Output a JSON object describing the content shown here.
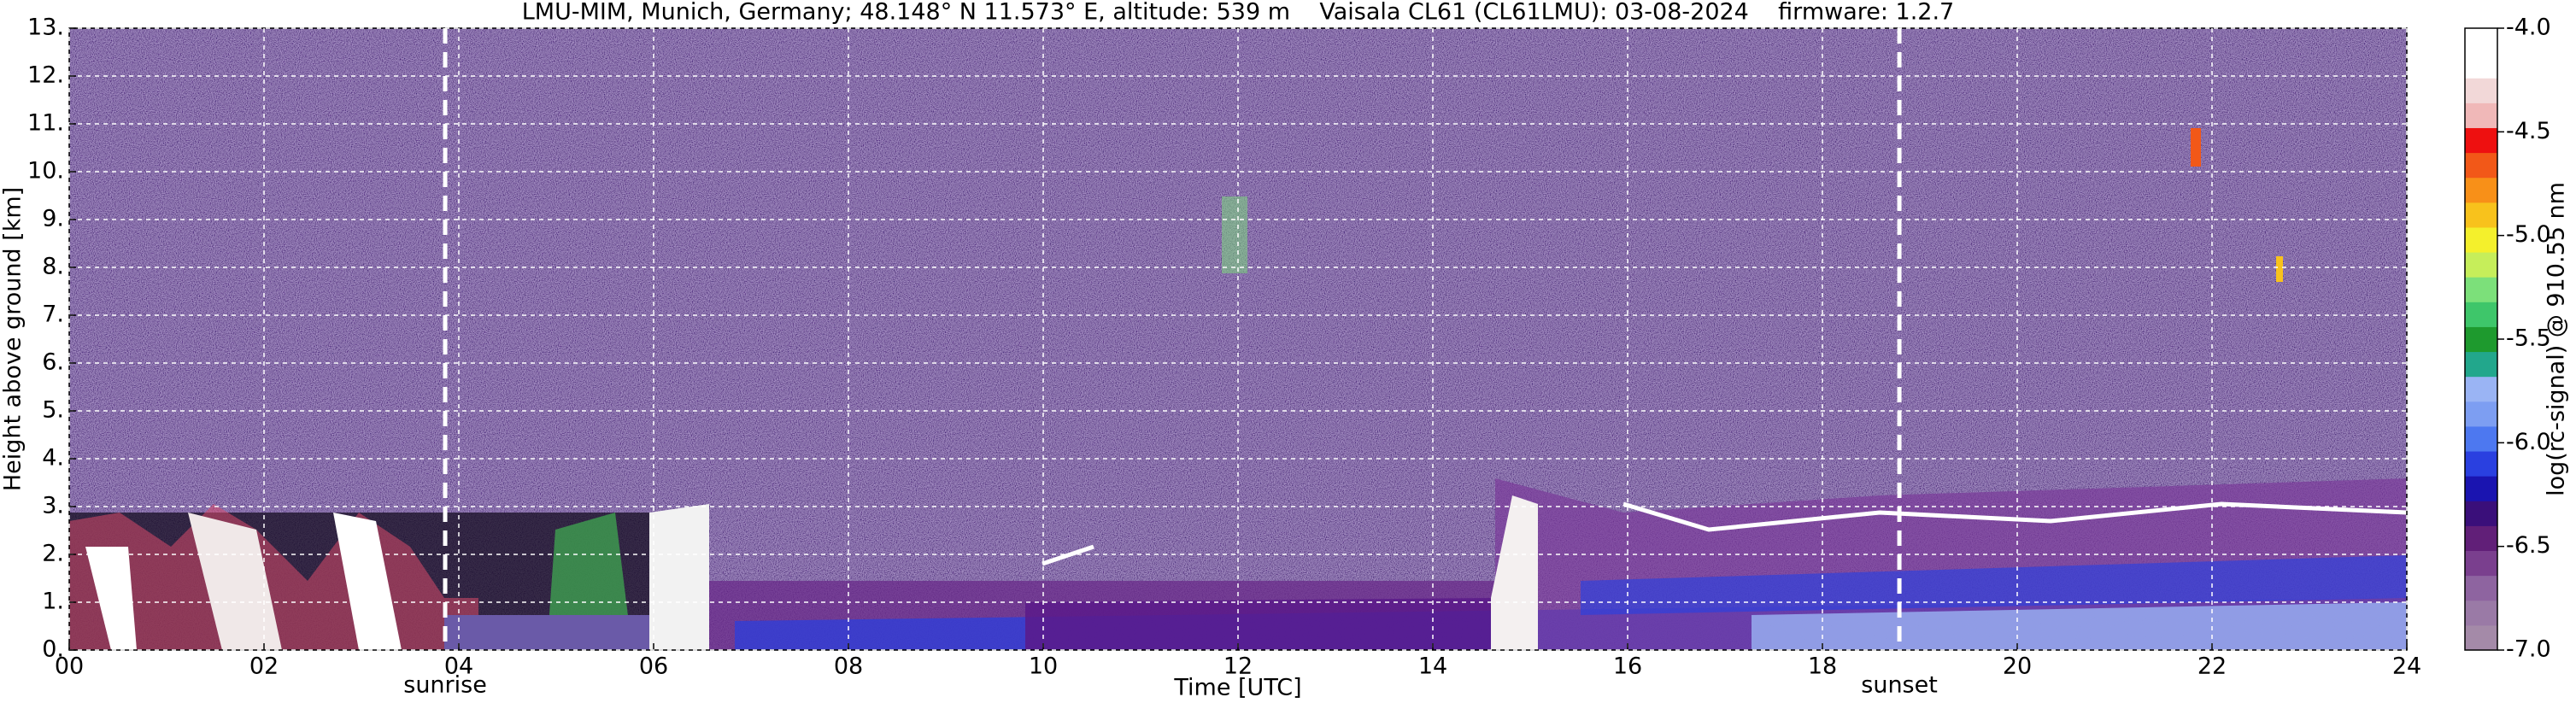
{
  "chart_data": {
    "type": "heatmap",
    "title": "LMU-MIM, Munich, Germany; 48.148° N 11.573° E, altitude: 539 m    Vaisala CL61 (CL61LMU): 03-08-2024    firmware: 1.2.7",
    "x_label": "Time [UTC]",
    "y_label": "Height above ground [km]",
    "colorbar_label": "log(rc-signal) @ 910.55 nm",
    "xlim": [
      0,
      24
    ],
    "xticks": [
      {
        "value": 0,
        "label": "00"
      },
      {
        "value": 2,
        "label": "02"
      },
      {
        "value": 4,
        "label": "04"
      },
      {
        "value": 6,
        "label": "06"
      },
      {
        "value": 8,
        "label": "08"
      },
      {
        "value": 10,
        "label": "10"
      },
      {
        "value": 12,
        "label": "12"
      },
      {
        "value": 14,
        "label": "14"
      },
      {
        "value": 16,
        "label": "16"
      },
      {
        "value": 18,
        "label": "18"
      },
      {
        "value": 20,
        "label": "20"
      },
      {
        "value": 22,
        "label": "22"
      },
      {
        "value": 24,
        "label": "24"
      }
    ],
    "ylim": [
      0,
      13
    ],
    "yticks": [
      {
        "value": 0,
        "label": "0."
      },
      {
        "value": 1,
        "label": "1."
      },
      {
        "value": 2,
        "label": "2."
      },
      {
        "value": 3,
        "label": "3."
      },
      {
        "value": 4,
        "label": "4."
      },
      {
        "value": 5,
        "label": "5."
      },
      {
        "value": 6,
        "label": "6."
      },
      {
        "value": 7,
        "label": "7."
      },
      {
        "value": 8,
        "label": "8."
      },
      {
        "value": 9,
        "label": "9."
      },
      {
        "value": 10,
        "label": "10."
      },
      {
        "value": 11,
        "label": "11."
      },
      {
        "value": 12,
        "label": "12."
      },
      {
        "value": 13,
        "label": "13."
      }
    ],
    "clim": [
      -7,
      -4
    ],
    "cticks": [
      {
        "value": -4,
        "label": "-4.0"
      },
      -4.5,
      {
        "value": -5,
        "label": "-5.0"
      },
      -5.5,
      {
        "value": -6,
        "label": "-6.0"
      },
      -6.5,
      {
        "value": -7,
        "label": "-7.0"
      }
    ],
    "colormap": [
      "#a48aa8",
      "#9a7aa6",
      "#8e64a0",
      "#7a3f8e",
      "#611f78",
      "#3a0f7a",
      "#1a14b0",
      "#2a40e0",
      "#4d78f0",
      "#7d9ef2",
      "#9ab4f4",
      "#22a78c",
      "#1e9a2e",
      "#3ec66a",
      "#7ce07a",
      "#c6ee5a",
      "#f4f02c",
      "#f8c21c",
      "#f89018",
      "#f25818",
      "#ee1010",
      "#f0b8b8",
      "#f2d8d8",
      "#ffffff",
      "#ffffff"
    ],
    "grid": true,
    "annotations": [
      {
        "text": "sunrise",
        "x": 3.86
      },
      {
        "text": "sunset",
        "x": 18.79
      }
    ]
  }
}
